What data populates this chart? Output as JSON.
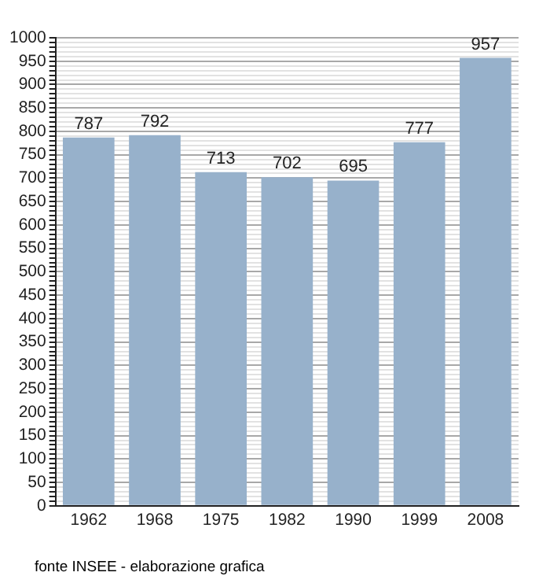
{
  "chart_data": {
    "type": "bar",
    "categories": [
      "1962",
      "1968",
      "1975",
      "1982",
      "1990",
      "1999",
      "2008"
    ],
    "values": [
      787,
      792,
      713,
      702,
      695,
      777,
      957
    ],
    "color": "#97b1cb",
    "ylim": [
      0,
      1000
    ],
    "yticks": [
      0,
      {
        "value": 10,
        "label": null
      },
      {
        "value": 20,
        "label": null
      },
      {
        "value": 30,
        "label": null
      },
      {
        "value": 40,
        "label": null
      },
      50,
      {
        "value": 60,
        "label": null
      },
      {
        "value": 70,
        "label": null
      },
      {
        "value": 80,
        "label": null
      },
      {
        "value": 90,
        "label": null
      },
      100,
      {
        "value": 110,
        "label": null
      },
      {
        "value": 120,
        "label": null
      },
      {
        "value": 130,
        "label": null
      },
      {
        "value": 140,
        "label": null
      },
      150,
      {
        "value": 160,
        "label": null
      },
      {
        "value": 170,
        "label": null
      },
      {
        "value": 180,
        "label": null
      },
      {
        "value": 190,
        "label": null
      },
      200,
      {
        "value": 210,
        "label": null
      },
      {
        "value": 220,
        "label": null
      },
      {
        "value": 230,
        "label": null
      },
      {
        "value": 240,
        "label": null
      },
      250,
      {
        "value": 260,
        "label": null
      },
      {
        "value": 270,
        "label": null
      },
      {
        "value": 280,
        "label": null
      },
      {
        "value": 290,
        "label": null
      },
      300,
      {
        "value": 310,
        "label": null
      },
      {
        "value": 320,
        "label": null
      },
      {
        "value": 330,
        "label": null
      },
      {
        "value": 340,
        "label": null
      },
      350,
      {
        "value": 360,
        "label": null
      },
      {
        "value": 370,
        "label": null
      },
      {
        "value": 380,
        "label": null
      },
      {
        "value": 390,
        "label": null
      },
      400,
      {
        "value": 410,
        "label": null
      },
      {
        "value": 420,
        "label": null
      },
      {
        "value": 430,
        "label": null
      },
      {
        "value": 440,
        "label": null
      },
      450,
      {
        "value": 460,
        "label": null
      },
      {
        "value": 470,
        "label": null
      },
      {
        "value": 480,
        "label": null
      },
      {
        "value": 490,
        "label": null
      },
      500,
      {
        "value": 510,
        "label": null
      },
      {
        "value": 520,
        "label": null
      },
      {
        "value": 530,
        "label": null
      },
      {
        "value": 540,
        "label": null
      },
      550,
      {
        "value": 560,
        "label": null
      },
      {
        "value": 570,
        "label": null
      },
      {
        "value": 580,
        "label": null
      },
      {
        "value": 590,
        "label": null
      },
      600,
      {
        "value": 610,
        "label": null
      },
      {
        "value": 620,
        "label": null
      },
      {
        "value": 630,
        "label": null
      },
      {
        "value": 640,
        "label": null
      },
      650,
      {
        "value": 660,
        "label": null
      },
      {
        "value": 670,
        "label": null
      },
      {
        "value": 680,
        "label": null
      },
      {
        "value": 690,
        "label": null
      },
      700,
      {
        "value": 710,
        "label": null
      },
      {
        "value": 720,
        "label": null
      },
      {
        "value": 730,
        "label": null
      },
      {
        "value": 740,
        "label": null
      },
      750,
      {
        "value": 760,
        "label": null
      },
      {
        "value": 770,
        "label": null
      },
      {
        "value": 780,
        "label": null
      },
      {
        "value": 790,
        "label": null
      },
      800,
      {
        "value": 810,
        "label": null
      },
      {
        "value": 820,
        "label": null
      },
      {
        "value": 830,
        "label": null
      },
      {
        "value": 840,
        "label": null
      },
      850,
      {
        "value": 860,
        "label": null
      },
      {
        "value": 870,
        "label": null
      },
      {
        "value": 880,
        "label": null
      },
      {
        "value": 890,
        "label": null
      },
      900,
      {
        "value": 910,
        "label": null
      },
      {
        "value": 920,
        "label": null
      },
      {
        "value": 930,
        "label": null
      },
      {
        "value": 940,
        "label": null
      },
      950,
      {
        "value": 960,
        "label": null
      },
      {
        "value": 970,
        "label": null
      },
      {
        "value": 980,
        "label": null
      },
      {
        "value": 990,
        "label": null
      },
      1000
    ],
    "grid": "y",
    "data_labels": true,
    "annotations": [
      "fonte INSEE - elaborazione grafica"
    ]
  }
}
